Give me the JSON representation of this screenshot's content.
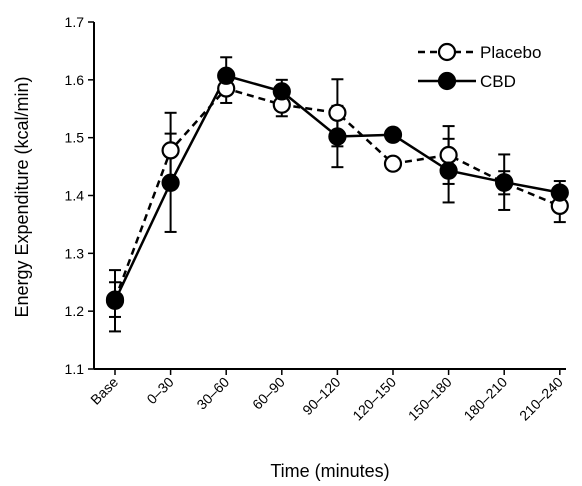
{
  "chart_data": {
    "type": "line",
    "title": "",
    "xlabel": "Time (minutes)",
    "ylabel": "Energy Expenditure (kcal/min)",
    "categories": [
      "Base",
      "0–30",
      "30–60",
      "60–90",
      "90–120",
      "120–150",
      "150–180",
      "180–210",
      "210–240"
    ],
    "ylim": [
      1.1,
      1.7
    ],
    "yticks": [
      "1.1",
      "1.2",
      "1.3",
      "1.4",
      "1.5",
      "1.6",
      "1.7"
    ],
    "grid": false,
    "legend": "top-right",
    "series": [
      {
        "name": "Placebo",
        "style": "dashed",
        "marker": "open-circle",
        "values": [
          1.22,
          1.478,
          1.585,
          1.557,
          1.543,
          1.455,
          1.47,
          1.422,
          1.382
        ],
        "error": [
          0.03,
          0.065,
          0.025,
          0.02,
          0.058,
          0.01,
          0.05,
          0.02,
          0.028
        ]
      },
      {
        "name": "CBD",
        "style": "solid",
        "marker": "filled-circle",
        "values": [
          1.218,
          1.422,
          1.607,
          1.58,
          1.502,
          1.505,
          1.443,
          1.423,
          1.405
        ],
        "error": [
          0.053,
          0.085,
          0.032,
          0.02,
          0.053,
          0.01,
          0.055,
          0.048,
          0.02
        ]
      }
    ],
    "colors": {
      "placebo": "#000000",
      "cbd": "#000000",
      "open_marker_fill": "#ffffff"
    }
  }
}
